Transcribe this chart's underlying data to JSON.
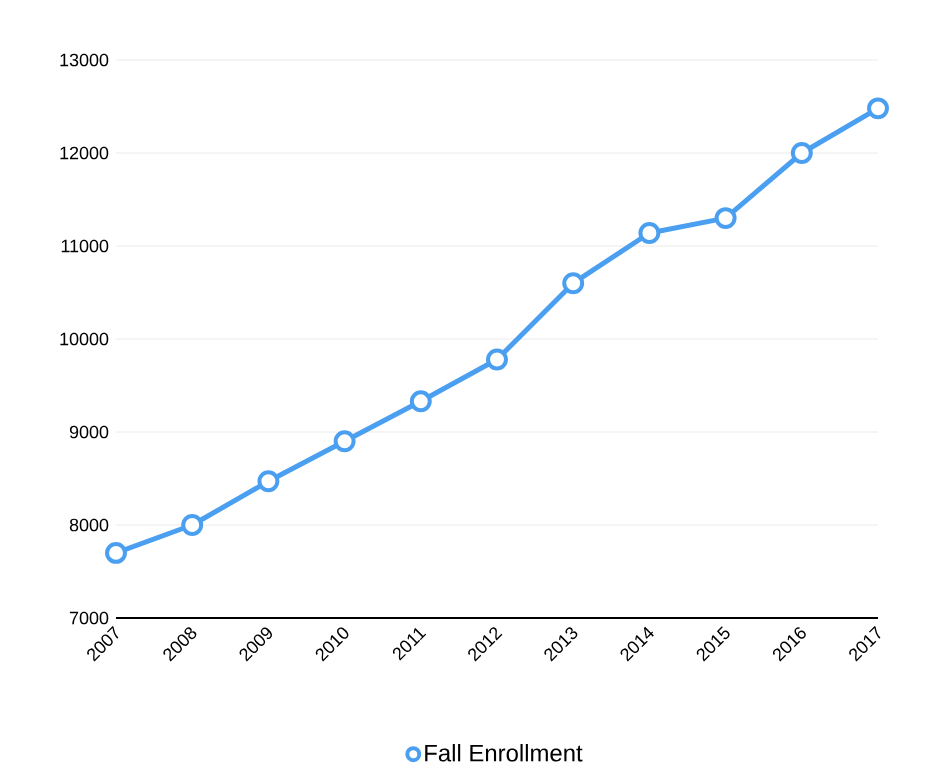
{
  "chart_data": {
    "type": "line",
    "categories": [
      "2007",
      "2008",
      "2009",
      "2010",
      "2011",
      "2012",
      "2013",
      "2014",
      "2015",
      "2016",
      "2017"
    ],
    "series": [
      {
        "name": "Fall Enrollment",
        "color": "#4a9ff0",
        "values": [
          7700,
          8000,
          8470,
          8900,
          9330,
          9780,
          10600,
          11140,
          11300,
          12000,
          12480
        ]
      }
    ],
    "ylim": [
      7000,
      13000
    ],
    "yticks": [
      7000,
      8000,
      9000,
      10000,
      11000,
      12000,
      13000
    ],
    "grid": "y",
    "legend": "bottom",
    "marker": "circle",
    "line_style": "solid"
  }
}
